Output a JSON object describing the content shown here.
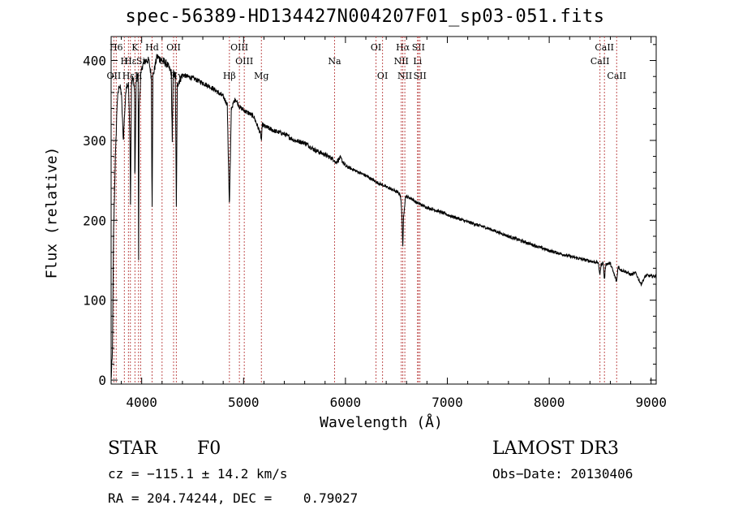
{
  "chart_data": {
    "type": "line",
    "title": "spec-56389-HD134427N004207F01_sp03-051.fits",
    "xlabel": "Wavelength (Å)",
    "ylabel": "Flux (relative)",
    "xlim": [
      3700,
      9050
    ],
    "ylim": [
      -5,
      430
    ],
    "x_ticks": [
      4000,
      5000,
      6000,
      7000,
      8000,
      9000
    ],
    "y_ticks": [
      0,
      100,
      200,
      300,
      400
    ],
    "spectrum_anchor_points": [
      [
        3700,
        0
      ],
      [
        3712,
        30
      ],
      [
        3725,
        190
      ],
      [
        3740,
        270
      ],
      [
        3760,
        350
      ],
      [
        3780,
        370
      ],
      [
        3800,
        360
      ],
      [
        3820,
        300
      ],
      [
        3835,
        340
      ],
      [
        3850,
        370
      ],
      [
        3870,
        370
      ],
      [
        3885,
        300
      ],
      [
        3890,
        220
      ],
      [
        3900,
        370
      ],
      [
        3915,
        380
      ],
      [
        3930,
        360
      ],
      [
        3933,
        235
      ],
      [
        3945,
        370
      ],
      [
        3965,
        385
      ],
      [
        3968,
        215
      ],
      [
        3970,
        152
      ],
      [
        3975,
        340
      ],
      [
        3990,
        380
      ],
      [
        4010,
        395
      ],
      [
        4040,
        400
      ],
      [
        4070,
        400
      ],
      [
        4095,
        380
      ],
      [
        4102,
        210
      ],
      [
        4110,
        380
      ],
      [
        4150,
        405
      ],
      [
        4200,
        400
      ],
      [
        4250,
        395
      ],
      [
        4290,
        385
      ],
      [
        4300,
        300
      ],
      [
        4310,
        385
      ],
      [
        4330,
        380
      ],
      [
        4340,
        215
      ],
      [
        4350,
        370
      ],
      [
        4400,
        382
      ],
      [
        4500,
        378
      ],
      [
        4600,
        372
      ],
      [
        4700,
        365
      ],
      [
        4800,
        355
      ],
      [
        4840,
        345
      ],
      [
        4861,
        215
      ],
      [
        4880,
        340
      ],
      [
        4920,
        352
      ],
      [
        4960,
        342
      ],
      [
        5000,
        338
      ],
      [
        5100,
        330
      ],
      [
        5167,
        308
      ],
      [
        5175,
        300
      ],
      [
        5185,
        320
      ],
      [
        5200,
        318
      ],
      [
        5300,
        312
      ],
      [
        5400,
        308
      ],
      [
        5500,
        300
      ],
      [
        5600,
        297
      ],
      [
        5700,
        288
      ],
      [
        5800,
        282
      ],
      [
        5890,
        276
      ],
      [
        5900,
        272
      ],
      [
        5950,
        278
      ],
      [
        6000,
        268
      ],
      [
        6100,
        262
      ],
      [
        6200,
        256
      ],
      [
        6300,
        248
      ],
      [
        6400,
        242
      ],
      [
        6500,
        236
      ],
      [
        6540,
        232
      ],
      [
        6555,
        205
      ],
      [
        6563,
        163
      ],
      [
        6570,
        205
      ],
      [
        6590,
        230
      ],
      [
        6650,
        227
      ],
      [
        6700,
        222
      ],
      [
        6800,
        216
      ],
      [
        6900,
        212
      ],
      [
        7000,
        207
      ],
      [
        7200,
        198
      ],
      [
        7400,
        190
      ],
      [
        7600,
        180
      ],
      [
        7800,
        171
      ],
      [
        8000,
        162
      ],
      [
        8200,
        155
      ],
      [
        8400,
        149
      ],
      [
        8480,
        147
      ],
      [
        8498,
        132
      ],
      [
        8510,
        145
      ],
      [
        8530,
        147
      ],
      [
        8542,
        125
      ],
      [
        8555,
        145
      ],
      [
        8600,
        146
      ],
      [
        8662,
        123
      ],
      [
        8675,
        142
      ],
      [
        8700,
        138
      ],
      [
        8750,
        136
      ],
      [
        8800,
        132
      ],
      [
        8850,
        134
      ],
      [
        8900,
        120
      ],
      [
        8950,
        131
      ],
      [
        9000,
        130
      ],
      [
        9050,
        130
      ]
    ],
    "line_markers": [
      {
        "name": "H6",
        "wavelength": 3750,
        "row": 1
      },
      {
        "name": "K",
        "wavelength": 3934,
        "row": 1
      },
      {
        "name": "Hd",
        "wavelength": 4102,
        "row": 1
      },
      {
        "name": "OII",
        "wavelength": 4313,
        "row": 1
      },
      {
        "name": "OIII",
        "wavelength": 4959,
        "row": 1
      },
      {
        "name": "OI",
        "wavelength": 6300,
        "row": 1
      },
      {
        "name": "Hα",
        "wavelength": 6563,
        "row": 1
      },
      {
        "name": "SII",
        "wavelength": 6716,
        "row": 1
      },
      {
        "name": "CaII",
        "wavelength": 8542,
        "row": 1
      },
      {
        "name": "H",
        "wavelength": 3830,
        "row": 2
      },
      {
        "name": "Hε",
        "wavelength": 3889,
        "row": 2
      },
      {
        "name": "Si",
        "wavelength": 3990,
        "row": 2
      },
      {
        "name": "G",
        "wavelength": 4200,
        "row": 2
      },
      {
        "name": "OIII",
        "wavelength": 5007,
        "row": 2
      },
      {
        "name": "Na",
        "wavelength": 5893,
        "row": 2
      },
      {
        "name": "NII",
        "wavelength": 6548,
        "row": 2
      },
      {
        "name": "Li",
        "wavelength": 6708,
        "row": 2
      },
      {
        "name": "CaII",
        "wavelength": 8498,
        "row": 2
      },
      {
        "name": "OII",
        "wavelength": 3727,
        "row": 3
      },
      {
        "name": "Hε",
        "wavelength": 3870,
        "row": 3
      },
      {
        "name": "H",
        "wavelength": 3969,
        "row": 3
      },
      {
        "name": "Hγ",
        "wavelength": 4340,
        "row": 3
      },
      {
        "name": "Hβ",
        "wavelength": 4861,
        "row": 3
      },
      {
        "name": "Mg",
        "wavelength": 5175,
        "row": 3
      },
      {
        "name": "OI",
        "wavelength": 6364,
        "row": 3
      },
      {
        "name": "NII",
        "wavelength": 6583,
        "row": 3
      },
      {
        "name": "SII",
        "wavelength": 6731,
        "row": 3
      },
      {
        "name": "CaII",
        "wavelength": 8662,
        "row": 3
      }
    ],
    "marker_color": "#c05050",
    "line_color": "#000000"
  },
  "info": {
    "object_class": "STAR",
    "subclass": "F0",
    "survey": "LAMOST DR3",
    "velocity": "cz = −115.1 ± 14.2 km/s",
    "obs_date": "Obs−Date: 20130406",
    "coordinates": "RA = 204.74244, DEC =    0.79027"
  }
}
